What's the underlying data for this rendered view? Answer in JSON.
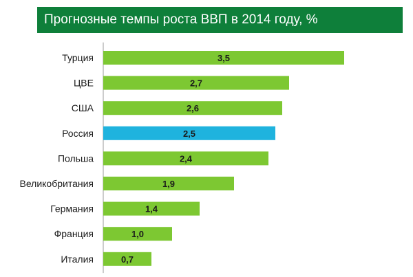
{
  "chart_data": {
    "type": "bar",
    "orientation": "horizontal",
    "title": "Прогнозные темпы роста ВВП в 2014 году, %",
    "categories": [
      "Турция",
      "ЦВЕ",
      "США",
      "Россия",
      "Польша",
      "Великобритания",
      "Германия",
      "Франция",
      "Италия"
    ],
    "values": [
      3.5,
      2.7,
      2.6,
      2.5,
      2.4,
      1.9,
      1.4,
      1.0,
      0.7
    ],
    "value_labels": [
      "3,5",
      "2,7",
      "2,6",
      "2,5",
      "2,4",
      "1,9",
      "1,4",
      "1,0",
      "0,7"
    ],
    "highlight_index": 3,
    "xlim": [
      0,
      4.0
    ],
    "xlabel": "",
    "ylabel": "",
    "grid": false,
    "colors": {
      "bar": "#7dc832",
      "highlight": "#1fb3de",
      "title_bg": "#0e7f3a"
    }
  }
}
